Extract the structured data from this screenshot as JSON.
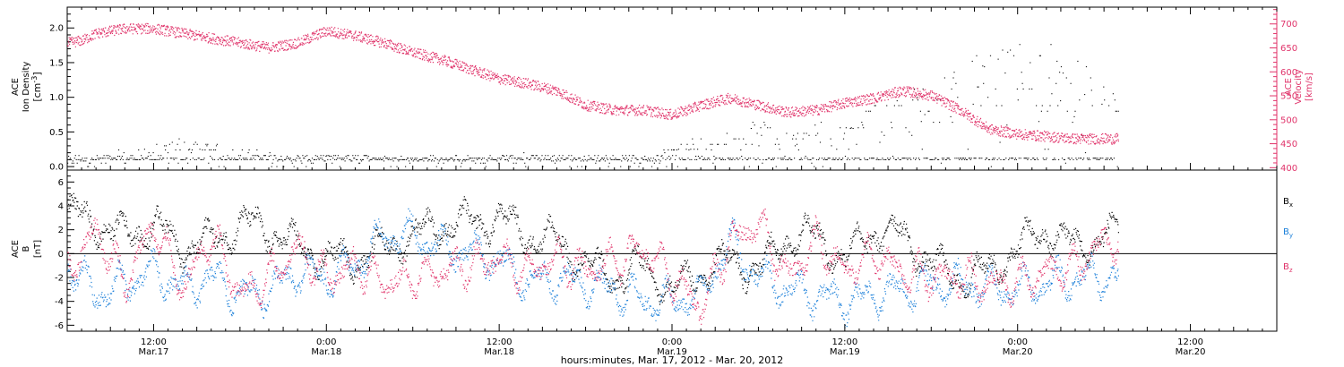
{
  "colors": {
    "axis": "#000000",
    "density": "#000000",
    "velocity": "#e0336a",
    "bx": "#000000",
    "by": "#1a7fd9",
    "bz": "#e0336a"
  },
  "xaxis": {
    "label": "hours:minutes, Mar. 17, 2012 - Mar. 20, 2012",
    "range_hours": [
      6,
      90
    ],
    "ticks": [
      {
        "hour": 12,
        "time": "12:00",
        "date": "Mar.17"
      },
      {
        "hour": 24,
        "time": "0:00",
        "date": "Mar.18"
      },
      {
        "hour": 36,
        "time": "12:00",
        "date": "Mar.18"
      },
      {
        "hour": 48,
        "time": "0:00",
        "date": "Mar.19"
      },
      {
        "hour": 60,
        "time": "12:00",
        "date": "Mar.19"
      },
      {
        "hour": 72,
        "time": "0:00",
        "date": "Mar.20"
      },
      {
        "hour": 84,
        "time": "12:00",
        "date": "Mar.20"
      }
    ]
  },
  "panel1": {
    "left_label": {
      "line1": "ACE",
      "line2": "Ion Density",
      "unit_base": "[cm",
      "unit_sup": "-3",
      "unit_end": "]"
    },
    "right_label": {
      "line1": "ACE",
      "line2": "Velocity",
      "unit": "[km/s]"
    }
  },
  "panel2": {
    "left_label": {
      "line1": "ACE",
      "line2": "B",
      "unit": "[nT]"
    },
    "legend": [
      {
        "base": "B",
        "sub": "x",
        "color": "#000000"
      },
      {
        "base": "B",
        "sub": "y",
        "color": "#1a7fd9"
      },
      {
        "base": "B",
        "sub": "z",
        "color": "#e0336a"
      }
    ]
  },
  "chart_data": [
    {
      "type": "scatter",
      "title": "",
      "xlabel": "hours:minutes, Mar. 17, 2012 - Mar. 20, 2012",
      "y_left": {
        "label": "ACE Ion Density [cm-3]",
        "ticks": [
          "0.0",
          "0.5",
          "1.0",
          "1.5",
          "2.0"
        ],
        "range": [
          -0.05,
          2.3
        ]
      },
      "y_right": {
        "label": "ACE Velocity [km/s]",
        "ticks": [
          "400",
          "450",
          "500",
          "550",
          "600",
          "650",
          "700"
        ],
        "range": [
          395,
          735
        ]
      },
      "series": [
        {
          "name": "",
          "axis": "left",
          "color": "#000000",
          "x": [
            6,
            10,
            14,
            18,
            22,
            26,
            30,
            34,
            38,
            42,
            46,
            50,
            52,
            54,
            56,
            58,
            60,
            62,
            64,
            66,
            68,
            70,
            72,
            74,
            76,
            78
          ],
          "y": [
            0.1,
            0.15,
            0.3,
            0.2,
            0.12,
            0.15,
            0.1,
            0.1,
            0.15,
            0.1,
            0.12,
            0.3,
            0.4,
            0.5,
            0.35,
            0.5,
            0.4,
            0.7,
            0.8,
            0.9,
            1.1,
            1.2,
            1.3,
            1.3,
            1.1,
            1.0
          ]
        },
        {
          "name": "",
          "axis": "right",
          "color": "#e0336a",
          "x": [
            6,
            7,
            8,
            10,
            12,
            14,
            16,
            18,
            20,
            22,
            24,
            26,
            28,
            30,
            32,
            34,
            36,
            38,
            40,
            42,
            44,
            46,
            48,
            50,
            52,
            54,
            56,
            58,
            60,
            62,
            64,
            66,
            68,
            70,
            72,
            74,
            76,
            78
          ],
          "y": [
            660,
            665,
            680,
            690,
            690,
            680,
            670,
            660,
            650,
            660,
            685,
            675,
            660,
            640,
            625,
            605,
            585,
            575,
            560,
            530,
            520,
            520,
            510,
            530,
            545,
            530,
            515,
            520,
            535,
            545,
            560,
            550,
            520,
            480,
            470,
            465,
            460,
            460
          ]
        }
      ]
    },
    {
      "type": "scatter",
      "title": "",
      "xlabel": "hours:minutes, Mar. 17, 2012 - Mar. 20, 2012",
      "ylabel": "ACE B [nT]",
      "ylim": [
        -6.5,
        7
      ],
      "yticks": [
        "-6",
        "-4",
        "-2",
        "0",
        "2",
        "4",
        "6"
      ],
      "series": [
        {
          "name": "Bx",
          "color": "#000000",
          "x": [
            6,
            8,
            10,
            12,
            14,
            16,
            18,
            20,
            22,
            24,
            26,
            28,
            30,
            32,
            34,
            36,
            38,
            40,
            42,
            44,
            46,
            48,
            50,
            52,
            54,
            56,
            58,
            60,
            62,
            64,
            66,
            68,
            70,
            72,
            74,
            76,
            78
          ],
          "y": [
            3.5,
            2.5,
            1.5,
            2.5,
            0.5,
            1.0,
            2.5,
            2.0,
            0.5,
            -0.5,
            -0.5,
            0.5,
            1.5,
            2.5,
            2.5,
            3.0,
            1.5,
            1.0,
            -1.0,
            -2.0,
            -1.0,
            -3.0,
            -1.5,
            -0.5,
            -1.5,
            1.5,
            1.5,
            -0.5,
            2.0,
            1.5,
            -1.0,
            -2.0,
            -1.5,
            0.5,
            2.0,
            0.5,
            1.5
          ]
        },
        {
          "name": "By",
          "color": "#1a7fd9",
          "x": [
            6,
            8,
            10,
            12,
            14,
            16,
            18,
            20,
            22,
            24,
            26,
            28,
            30,
            32,
            34,
            36,
            38,
            40,
            42,
            44,
            46,
            48,
            50,
            52,
            54,
            56,
            58,
            60,
            62,
            64,
            66,
            68,
            70,
            72,
            74,
            76,
            78
          ],
          "y": [
            -1.0,
            -3.5,
            -2.5,
            -1.5,
            -3.0,
            -2.0,
            -3.5,
            -3.0,
            -1.5,
            -2.0,
            -1.0,
            1.5,
            1.5,
            0.5,
            0.0,
            -0.5,
            -2.5,
            -2.0,
            -2.5,
            -3.0,
            -4.0,
            -4.0,
            -3.5,
            1.0,
            -2.0,
            -3.0,
            -3.5,
            -4.0,
            -3.5,
            -3.0,
            -2.5,
            -2.5,
            -3.0,
            -3.0,
            -2.5,
            -2.0,
            -2.0
          ]
        },
        {
          "name": "Bz",
          "color": "#e0336a",
          "x": [
            6,
            8,
            10,
            12,
            14,
            16,
            18,
            20,
            22,
            24,
            26,
            28,
            30,
            32,
            34,
            36,
            38,
            40,
            42,
            44,
            46,
            48,
            50,
            52,
            54,
            56,
            58,
            60,
            62,
            64,
            66,
            68,
            70,
            72,
            74,
            76,
            78
          ],
          "y": [
            -1.5,
            2.0,
            -2.5,
            2.5,
            -3.0,
            1.5,
            -3.5,
            -2.0,
            0.5,
            -2.0,
            -1.0,
            -2.5,
            -2.0,
            -1.5,
            -1.0,
            -0.5,
            -1.5,
            -0.5,
            -1.5,
            -0.5,
            0.5,
            -2.0,
            -4.5,
            1.0,
            2.5,
            -2.0,
            1.0,
            -1.5,
            0.0,
            -1.5,
            -2.0,
            -2.0,
            -2.5,
            -2.5,
            -1.5,
            -1.0,
            1.0
          ]
        }
      ]
    }
  ]
}
